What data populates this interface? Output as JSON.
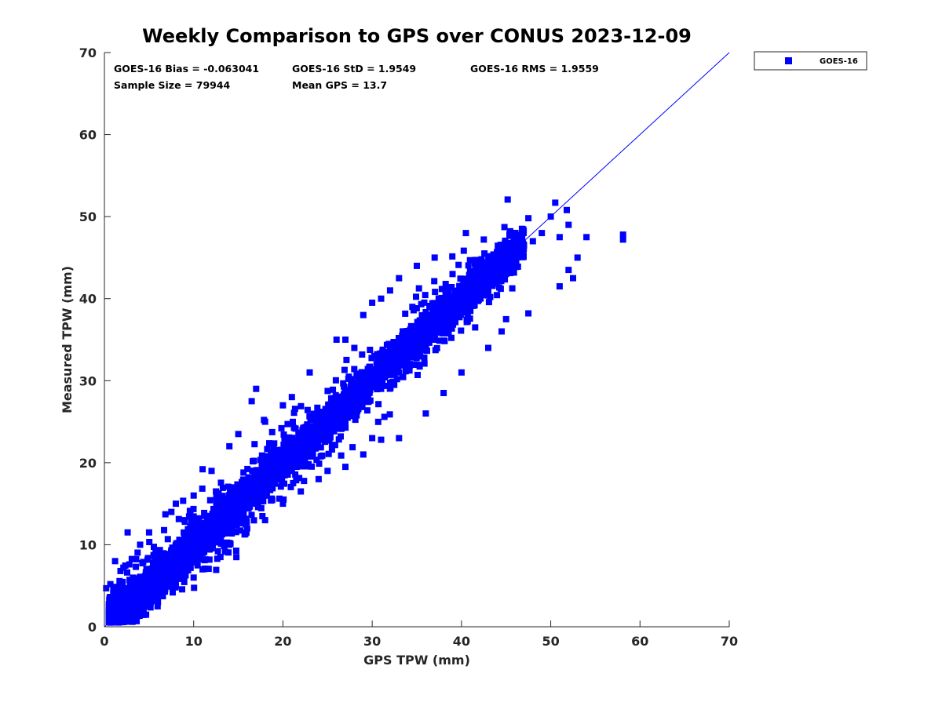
{
  "chart_data": {
    "type": "scatter",
    "title": "Weekly Comparison to GPS over CONUS 2023-12-09",
    "xlabel": "GPS TPW (mm)",
    "ylabel": "Measured TPW (mm)",
    "xlim": [
      0,
      70
    ],
    "ylim": [
      0,
      70
    ],
    "xticks": [
      "0",
      "10",
      "20",
      "30",
      "40",
      "50",
      "60",
      "70"
    ],
    "yticks": [
      "0",
      "10",
      "20",
      "30",
      "40",
      "50",
      "60",
      "70"
    ],
    "grid": false,
    "legend_position": "outside-top-right",
    "series": [
      {
        "name": "GOES-16",
        "color": "#0000ff",
        "marker": "square",
        "points": [
          [
            0.2,
            4.7
          ],
          [
            0.5,
            2.0
          ],
          [
            1.0,
            3.0
          ],
          [
            1.5,
            2.0
          ],
          [
            2.0,
            3.5
          ],
          [
            2.5,
            2.2
          ],
          [
            1.8,
            6.8
          ],
          [
            1.2,
            8.0
          ],
          [
            2.6,
            11.5
          ],
          [
            3.0,
            5.0
          ],
          [
            4.0,
            4.5
          ],
          [
            5.0,
            6.0
          ],
          [
            6.0,
            5.0
          ],
          [
            7.0,
            7.5
          ],
          [
            8.0,
            6.0
          ],
          [
            9.0,
            8.0
          ],
          [
            10.0,
            10.0
          ],
          [
            11.0,
            9.0
          ],
          [
            12.0,
            12.0
          ],
          [
            13.0,
            11.0
          ],
          [
            14.0,
            14.0
          ],
          [
            15.0,
            13.5
          ],
          [
            16.0,
            16.0
          ],
          [
            17.0,
            15.0
          ],
          [
            18.0,
            18.0
          ],
          [
            19.0,
            17.5
          ],
          [
            20.0,
            20.0
          ],
          [
            21.0,
            19.0
          ],
          [
            22.0,
            22.0
          ],
          [
            23.0,
            21.0
          ],
          [
            24.0,
            24.0
          ],
          [
            25.0,
            23.5
          ],
          [
            26.0,
            26.0
          ],
          [
            27.0,
            25.0
          ],
          [
            28.0,
            28.0
          ],
          [
            29.0,
            27.5
          ],
          [
            30.0,
            30.0
          ],
          [
            31.0,
            29.0
          ],
          [
            32.0,
            32.0
          ],
          [
            33.0,
            31.0
          ],
          [
            34.0,
            34.0
          ],
          [
            35.0,
            33.5
          ],
          [
            36.0,
            36.0
          ],
          [
            37.0,
            35.0
          ],
          [
            38.0,
            38.0
          ],
          [
            39.0,
            37.0
          ],
          [
            40.0,
            40.0
          ],
          [
            41.0,
            38.5
          ],
          [
            42.0,
            42.0
          ],
          [
            43.0,
            41.0
          ],
          [
            44.0,
            44.0
          ],
          [
            45.0,
            43.0
          ],
          [
            46.0,
            45.0
          ],
          [
            47.0,
            46.5
          ],
          [
            48.0,
            47.0
          ],
          [
            49.0,
            48.0
          ],
          [
            50.0,
            50.0
          ],
          [
            51.0,
            47.5
          ],
          [
            52.0,
            49.0
          ],
          [
            53.0,
            45.0
          ],
          [
            54.0,
            47.5
          ],
          [
            58.1,
            47.2
          ],
          [
            58.1,
            47.8
          ],
          [
            50.5,
            51.7
          ],
          [
            51.8,
            50.8
          ],
          [
            47.5,
            49.8
          ],
          [
            40.5,
            48.0
          ],
          [
            42.5,
            47.2
          ],
          [
            52.0,
            43.5
          ],
          [
            52.5,
            42.5
          ],
          [
            51.0,
            41.5
          ],
          [
            47.5,
            38.2
          ],
          [
            44.5,
            36.0
          ],
          [
            43.0,
            34.0
          ],
          [
            45.0,
            37.5
          ],
          [
            40.0,
            31.0
          ],
          [
            38.0,
            28.5
          ],
          [
            36.0,
            26.0
          ],
          [
            33.0,
            23.0
          ],
          [
            31.0,
            22.8
          ],
          [
            30.0,
            23.0
          ],
          [
            29.0,
            21.0
          ],
          [
            27.0,
            19.5
          ],
          [
            25.0,
            19.0
          ],
          [
            24.0,
            18.0
          ],
          [
            22.0,
            16.5
          ],
          [
            20.0,
            15.0
          ],
          [
            18.0,
            13.0
          ],
          [
            16.0,
            12.0
          ],
          [
            14.0,
            10.0
          ],
          [
            13.0,
            8.5
          ],
          [
            11.0,
            7.0
          ],
          [
            10.0,
            6.0
          ],
          [
            8.0,
            5.0
          ],
          [
            6.0,
            3.0
          ],
          [
            4.0,
            1.5
          ],
          [
            3.0,
            1.5
          ],
          [
            5.0,
            2.5
          ],
          [
            17.0,
            29.0
          ],
          [
            16.5,
            27.5
          ],
          [
            20.0,
            27.0
          ],
          [
            23.0,
            31.0
          ],
          [
            26.0,
            35.0
          ],
          [
            27.0,
            35.0
          ],
          [
            29.0,
            38.0
          ],
          [
            30.0,
            39.5
          ],
          [
            31.0,
            40.0
          ],
          [
            32.0,
            41.0
          ],
          [
            33.0,
            42.5
          ],
          [
            35.0,
            44.0
          ],
          [
            37.0,
            45.0
          ],
          [
            11.0,
            19.2
          ],
          [
            12.0,
            19.0
          ],
          [
            10.0,
            16.0
          ],
          [
            8.0,
            15.0
          ],
          [
            7.5,
            14.0
          ],
          [
            5.0,
            11.5
          ],
          [
            4.0,
            10.0
          ],
          [
            14.0,
            22.0
          ],
          [
            15.0,
            23.5
          ],
          [
            18.0,
            25.0
          ],
          [
            21.0,
            28.0
          ],
          [
            28.0,
            34.0
          ],
          [
            9.0,
            13.0
          ],
          [
            12.5,
            16.5
          ],
          [
            19.0,
            21.5
          ],
          [
            34.5,
            39.0
          ],
          [
            39.0,
            43.0
          ]
        ],
        "band": {
          "x_range": [
            0.5,
            47.0
          ],
          "half_width_core": 1.9,
          "half_width_outer": 3.6,
          "slope": 1.0
        }
      }
    ],
    "reference_line": {
      "label": "1:1",
      "from": [
        0,
        0
      ],
      "to": [
        70,
        70
      ]
    },
    "stats": {
      "bias": "GOES-16 Bias = -0.063041",
      "std": "GOES-16 StD = 1.9549",
      "rms": "GOES-16 RMS = 1.9559",
      "sample_size": "Sample Size = 79944",
      "mean_gps": "Mean GPS = 13.7"
    },
    "legend": [
      {
        "label": "GOES-16",
        "color": "#0000ff",
        "marker": "square"
      }
    ]
  }
}
